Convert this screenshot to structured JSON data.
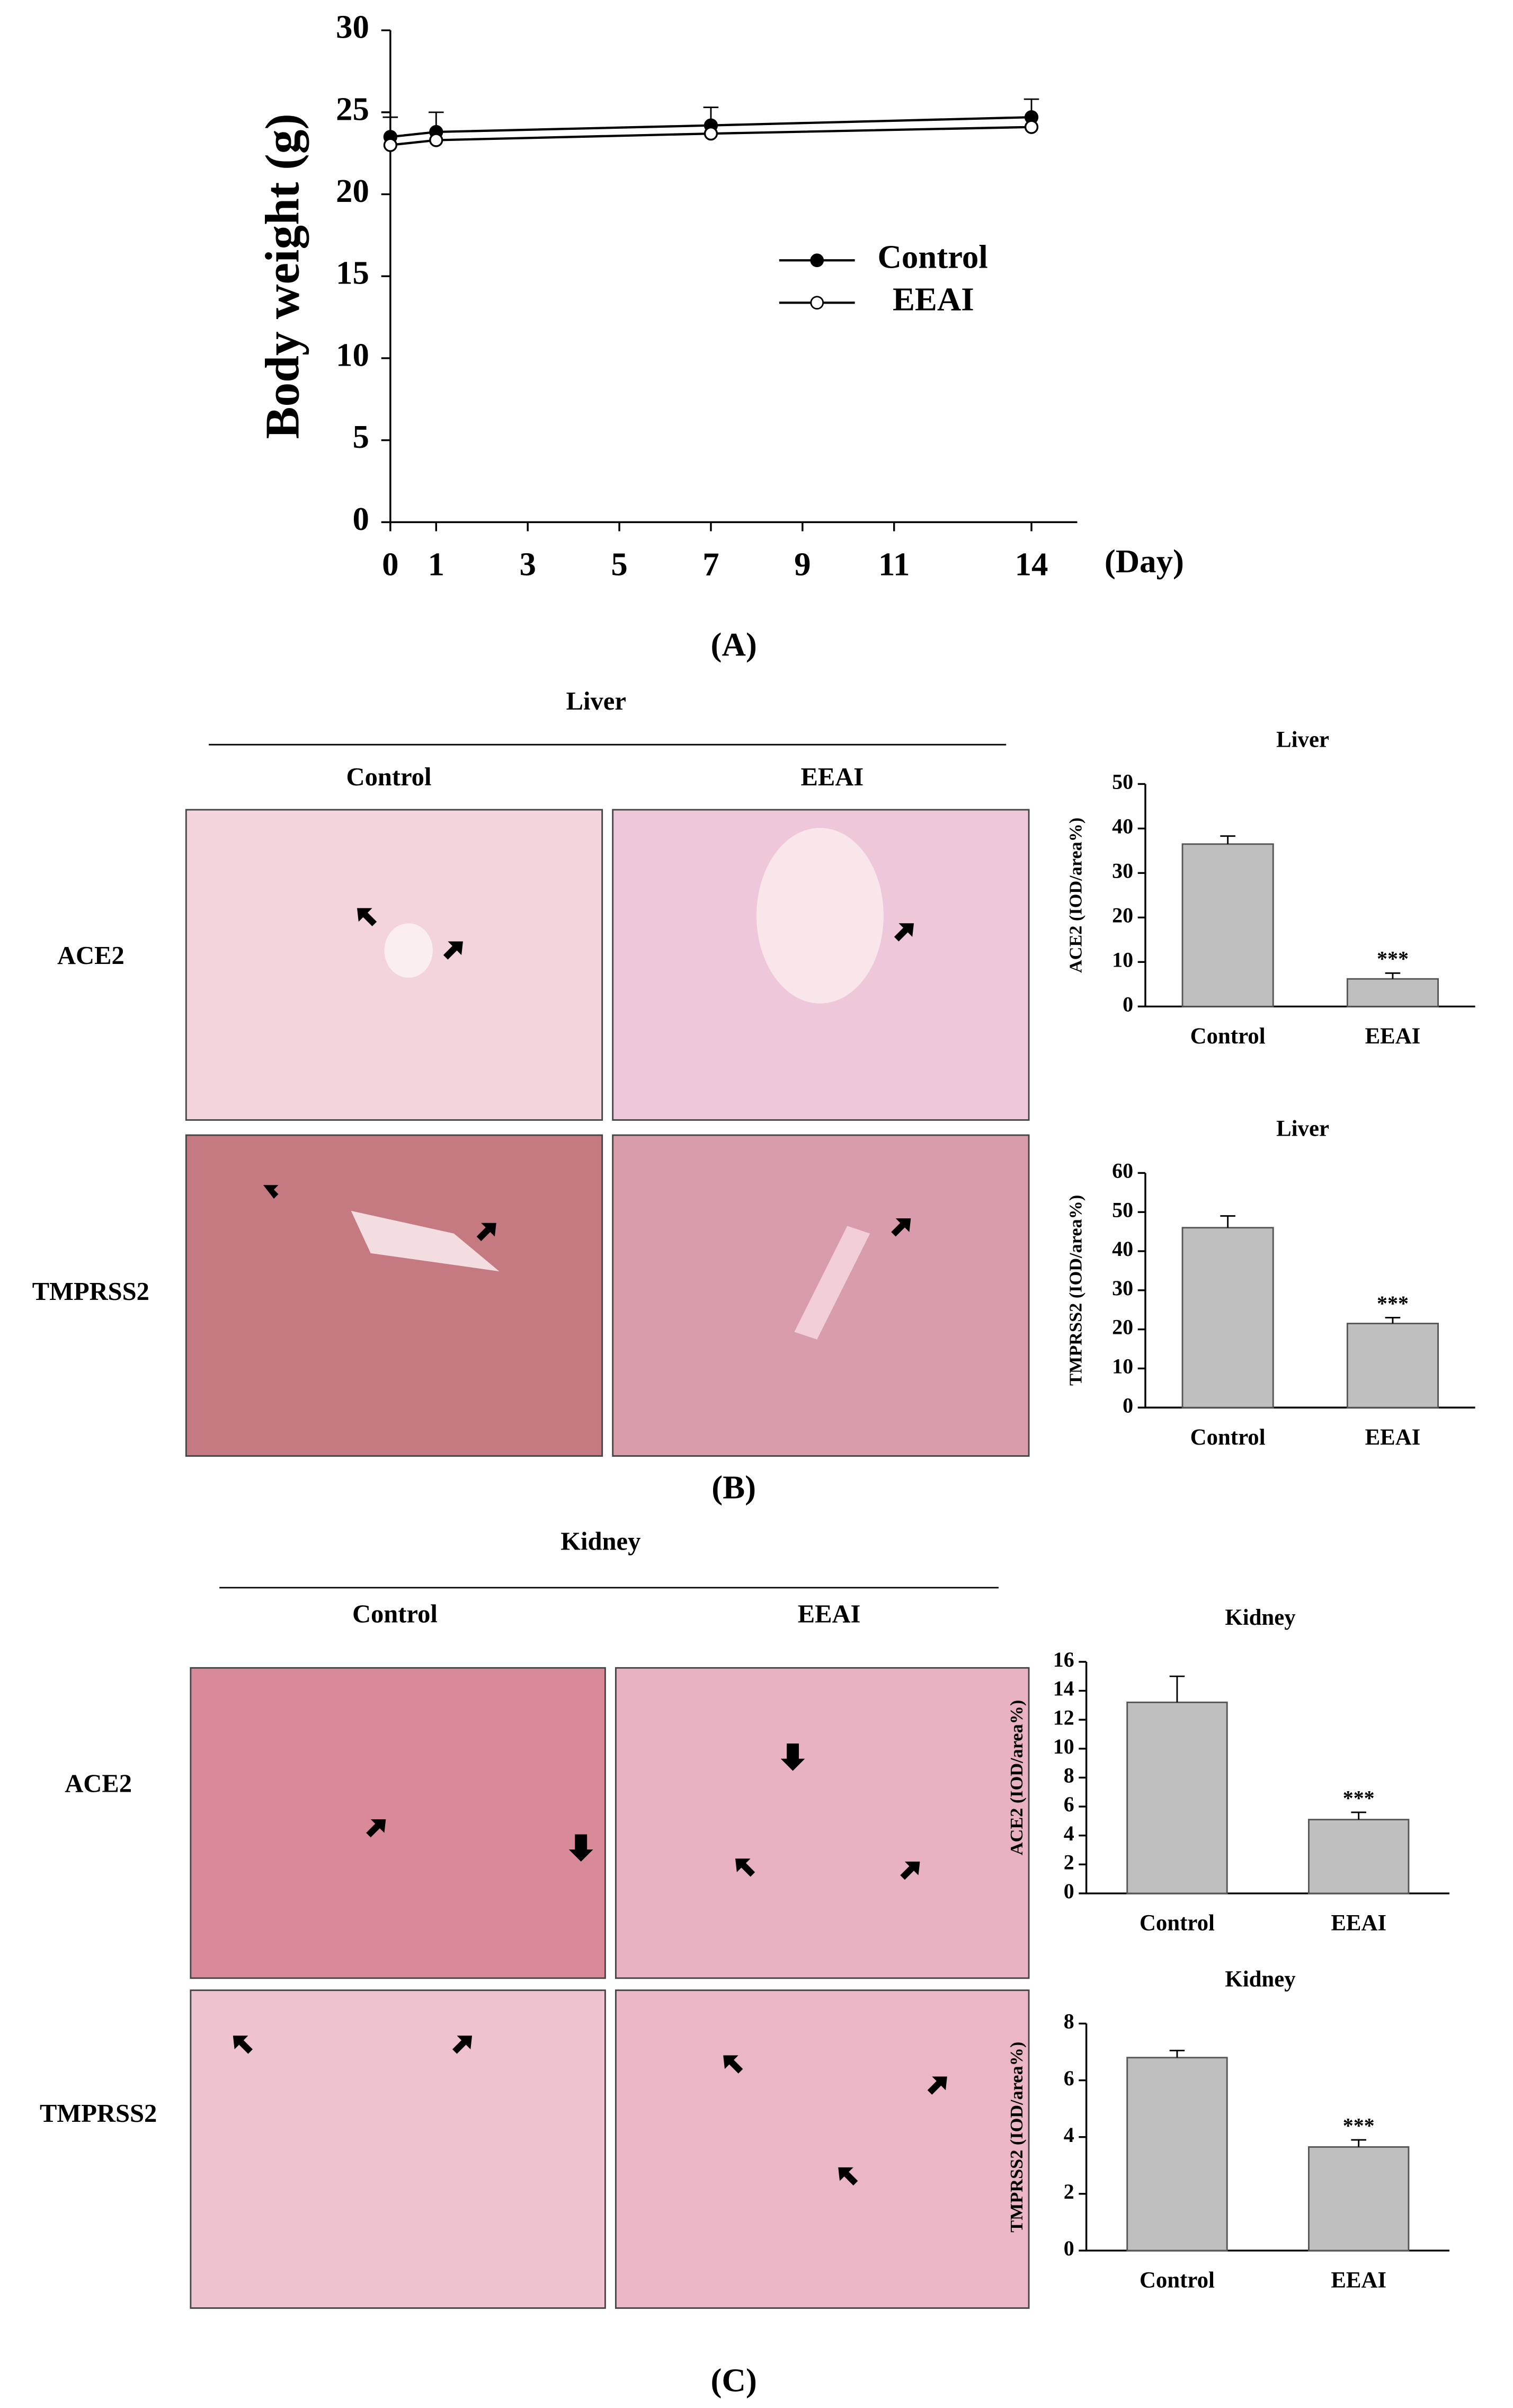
{
  "chart_data": [
    {
      "type": "line",
      "ylabel": "Body weight (g)",
      "xlabel": "(Day)",
      "caption": "(A)",
      "x": [
        0,
        1,
        7,
        14
      ],
      "xlim": [
        0,
        15
      ],
      "xticks": [
        0,
        1,
        3,
        5,
        7,
        9,
        11,
        14
      ],
      "ylim": [
        0,
        30
      ],
      "yticks": [
        0,
        5,
        10,
        15,
        20,
        25,
        30
      ],
      "series": [
        {
          "name": "Control",
          "color": "#000000",
          "marker": "filled",
          "values": [
            23.5,
            23.8,
            24.2,
            24.7
          ],
          "errors": [
            1.2,
            1.2,
            1.1,
            1.1
          ]
        },
        {
          "name": "EEAI",
          "color": "#000000",
          "marker": "open",
          "values": [
            23.0,
            23.3,
            23.7,
            24.1
          ]
        }
      ]
    },
    {
      "type": "bar",
      "title": "Liver",
      "ylabel": "ACE2 (IOD/area%)",
      "categories": [
        "Control",
        "EEAI"
      ],
      "values": [
        36.5,
        6.2
      ],
      "errors": [
        1.8,
        1.3
      ],
      "significance": [
        null,
        "***"
      ],
      "color": "#bfbfbf",
      "ylim": [
        0,
        50
      ],
      "yticks": [
        0,
        10,
        20,
        30,
        40,
        50
      ]
    },
    {
      "type": "bar",
      "title": "Liver",
      "ylabel": "TMPRSS2 (IOD/area%)",
      "categories": [
        "Control",
        "EEAI"
      ],
      "values": [
        46,
        21.5
      ],
      "errors": [
        3,
        1.5
      ],
      "significance": [
        null,
        "***"
      ],
      "color": "#bfbfbf",
      "ylim": [
        0,
        60
      ],
      "yticks": [
        0,
        10,
        20,
        30,
        40,
        50,
        60
      ]
    },
    {
      "type": "bar",
      "title": "Kidney",
      "ylabel": "ACE2 (IOD/area%)",
      "categories": [
        "Control",
        "EEAI"
      ],
      "values": [
        13.2,
        5.1
      ],
      "errors": [
        1.8,
        0.5
      ],
      "significance": [
        null,
        "***"
      ],
      "color": "#bfbfbf",
      "ylim": [
        0,
        16
      ],
      "yticks": [
        0,
        2,
        4,
        6,
        8,
        10,
        12,
        14,
        16
      ]
    },
    {
      "type": "bar",
      "title": "Kidney",
      "ylabel": "TMPRSS2 (IOD/area%)",
      "categories": [
        "Control",
        "EEAI"
      ],
      "values": [
        6.8,
        3.65
      ],
      "errors": [
        0.25,
        0.25
      ],
      "significance": [
        null,
        "***"
      ],
      "color": "#bfbfbf",
      "ylim": [
        0,
        8
      ],
      "yticks": [
        0,
        2,
        4,
        6,
        8
      ]
    }
  ],
  "panels": [
    {
      "organ": "Liver",
      "columns": [
        "Control",
        "EEAI"
      ],
      "rows": [
        "ACE2",
        "TMPRSS2"
      ],
      "caption": "(B)"
    },
    {
      "organ": "Kidney",
      "columns": [
        "Control",
        "EEAI"
      ],
      "rows": [
        "ACE2",
        "TMPRSS2"
      ],
      "caption": "(C)"
    }
  ]
}
